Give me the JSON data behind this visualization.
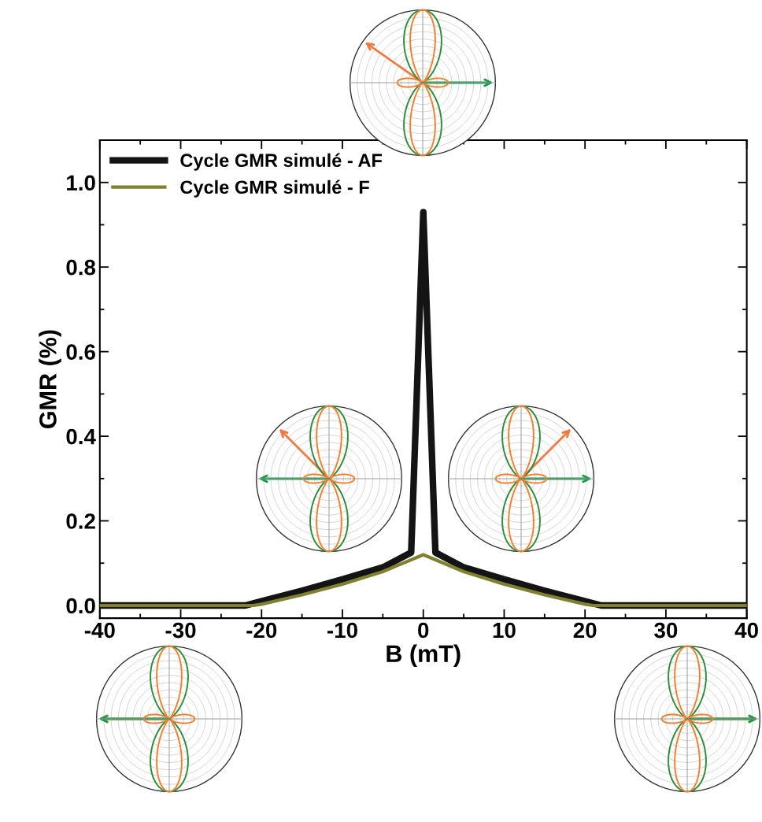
{
  "chart_data": {
    "type": "line",
    "xlabel": "B (mT)",
    "ylabel": "GMR (%)",
    "series": [
      {
        "name": "Cycle GMR simulé - AF",
        "color": "#141414",
        "x": [
          -40,
          -22,
          -20,
          -15,
          -10,
          -5,
          -1.5,
          0,
          1.5,
          5,
          10,
          15,
          20,
          22,
          40
        ],
        "values": [
          0,
          0,
          0.01,
          0.035,
          0.062,
          0.09,
          0.125,
          0.93,
          0.125,
          0.09,
          0.062,
          0.035,
          0.01,
          0,
          0
        ]
      },
      {
        "name": "Cycle GMR simulé - F",
        "color": "#808030",
        "x": [
          -40,
          -21,
          -20,
          -15,
          -10,
          -5,
          0,
          5,
          10,
          15,
          20,
          21,
          40
        ],
        "values": [
          0,
          0,
          0.003,
          0.025,
          0.05,
          0.08,
          0.12,
          0.08,
          0.05,
          0.025,
          0.003,
          0,
          0
        ]
      }
    ],
    "xlim": [
      -40,
      40
    ],
    "xticks": [
      -40,
      -30,
      -20,
      -10,
      0,
      10,
      20,
      30,
      40
    ],
    "ylim": [
      -0.03,
      1.1
    ],
    "yticks": [
      {
        "value": 0,
        "label": "0.0"
      },
      0.2,
      0.4,
      0.6,
      0.8,
      {
        "value": 1,
        "label": "1.0"
      }
    ],
    "legend": "top left",
    "grid": false,
    "marker": "none",
    "line_style": "solid"
  }
}
